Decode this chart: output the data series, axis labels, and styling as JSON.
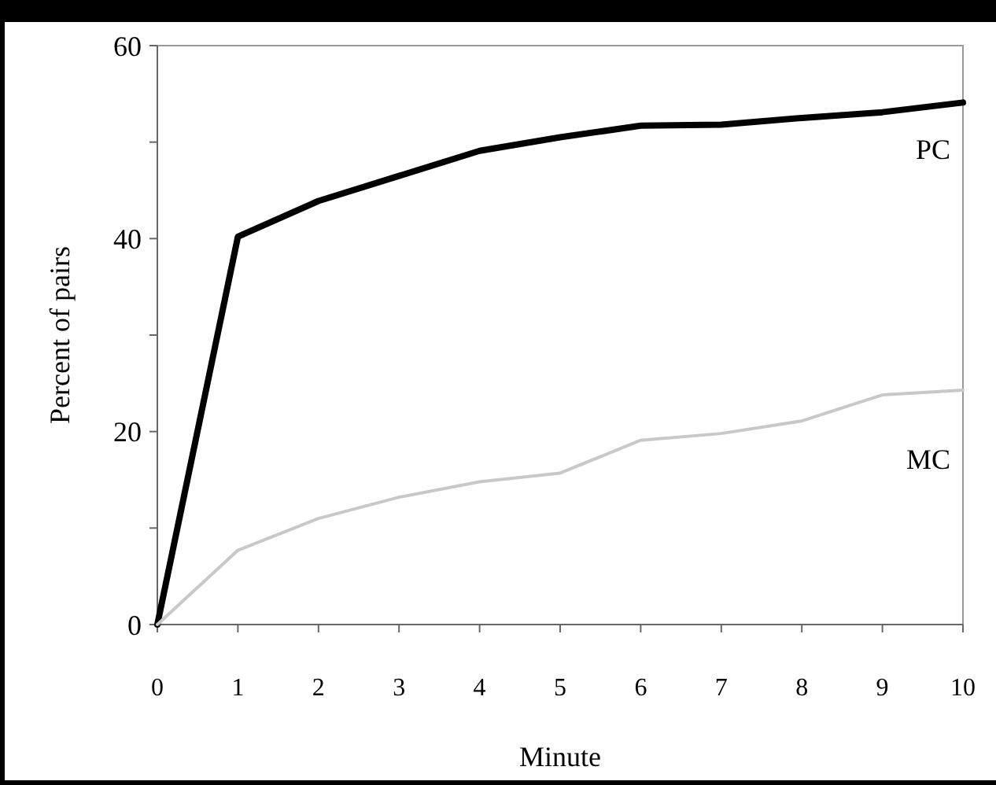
{
  "chart_data": {
    "type": "line",
    "xlabel": "Minute",
    "ylabel": "Percent of pairs",
    "x": [
      0,
      1,
      2,
      3,
      4,
      5,
      6,
      7,
      8,
      9,
      10
    ],
    "xlim": [
      0,
      10
    ],
    "xticks": [
      0,
      1,
      2,
      3,
      4,
      5,
      6,
      7,
      8,
      9,
      10
    ],
    "ylim": [
      0,
      60
    ],
    "yticks": [
      0,
      {
        "value": 10,
        "label": null
      },
      20,
      {
        "value": 30,
        "label": null
      },
      40,
      {
        "value": 50,
        "label": null
      },
      60
    ],
    "grid": false,
    "legend": false,
    "marker": "none",
    "line_style": "solid",
    "series": [
      {
        "name": "PC",
        "color": "#000000",
        "values": [
          0,
          40.2,
          43.9,
          46.5,
          49.1,
          50.5,
          51.7,
          51.8,
          52.5,
          53.1,
          54.1
        ]
      },
      {
        "name": "MC",
        "color": "#c8c8c8",
        "values": [
          0,
          7.7,
          11.0,
          13.2,
          14.8,
          15.7,
          19.1,
          19.8,
          21.1,
          23.8,
          24.3
        ]
      }
    ]
  }
}
